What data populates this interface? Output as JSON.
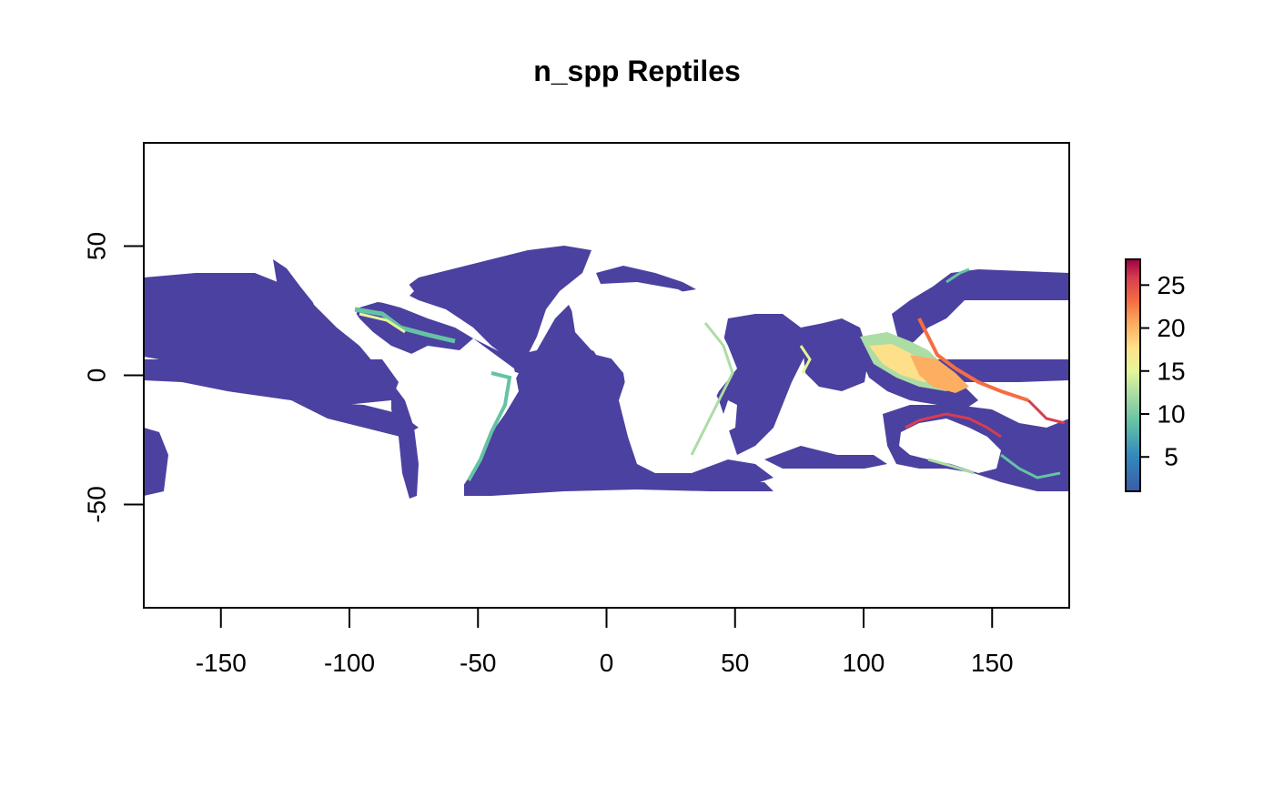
{
  "title": "n_spp Reptiles",
  "map": {
    "xlim": [
      -180,
      180
    ],
    "ylim": [
      -90,
      90
    ],
    "x_ticks": [
      -150,
      -100,
      -50,
      0,
      50,
      100,
      150
    ],
    "y_ticks": [
      -50,
      0,
      50
    ],
    "ocean_color": "#4b41a0",
    "background": "#ffffff"
  },
  "legend": {
    "min": 1,
    "max": 28,
    "ticks": [
      5,
      10,
      15,
      20,
      25
    ],
    "colors": [
      "#3b5ba6",
      "#3288bd",
      "#66c2a5",
      "#abdda4",
      "#e6f598",
      "#fee08b",
      "#fdae61",
      "#f46d43",
      "#d53e4f",
      "#9e0142"
    ]
  }
}
